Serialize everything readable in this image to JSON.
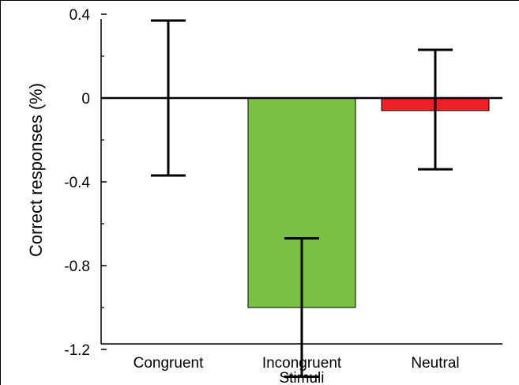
{
  "chart_data": {
    "type": "bar",
    "categories": [
      "Congruent",
      "Incongruent",
      "Neutral"
    ],
    "values": [
      0.0,
      -1.0,
      -0.06
    ],
    "error_low": [
      -0.37,
      -1.33,
      -0.34
    ],
    "error_high": [
      0.37,
      -0.67,
      0.23
    ],
    "bar_colors": [
      "#7ac143",
      "#7ac143",
      "#ee2024"
    ],
    "ylabel": "Correct responses (%)",
    "xlabel": "Stimuli",
    "ylim": [
      -1.4,
      0.4
    ],
    "yticks": [
      0.4,
      0,
      -0.4,
      -0.8,
      -1.2
    ],
    "ytick_labels": [
      "0.4",
      "0",
      "-0.4",
      "-0.8",
      "-1.2"
    ],
    "grid": false,
    "zero_line": true
  }
}
